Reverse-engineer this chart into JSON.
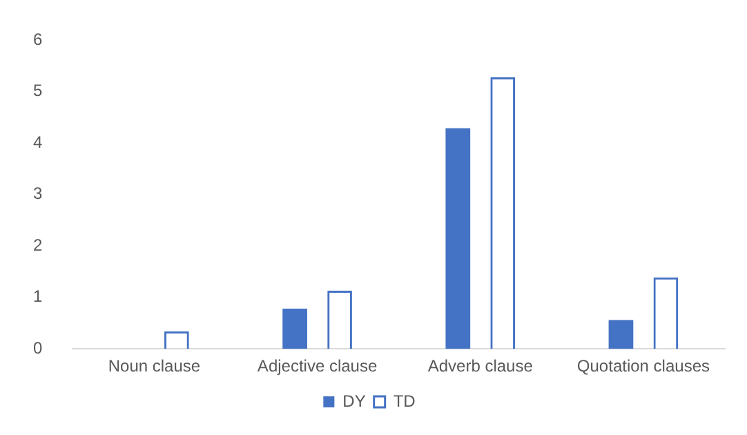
{
  "chart_data": {
    "type": "bar",
    "categories": [
      "Noun clause",
      "Adjective clause",
      "Adverb clause",
      "Quotation clauses"
    ],
    "series": [
      {
        "name": "DY",
        "color": "#4472c4",
        "values": [
          null,
          0.78,
          4.29,
          0.56
        ]
      },
      {
        "name": "TD",
        "color": "#4472c4",
        "values": [
          0.34,
          1.13,
          5.28,
          1.39
        ]
      }
    ],
    "ylim": [
      0,
      6
    ],
    "yticks": [
      0,
      1,
      2,
      3,
      4,
      5,
      6
    ],
    "grid": false,
    "legend": "bottom"
  }
}
